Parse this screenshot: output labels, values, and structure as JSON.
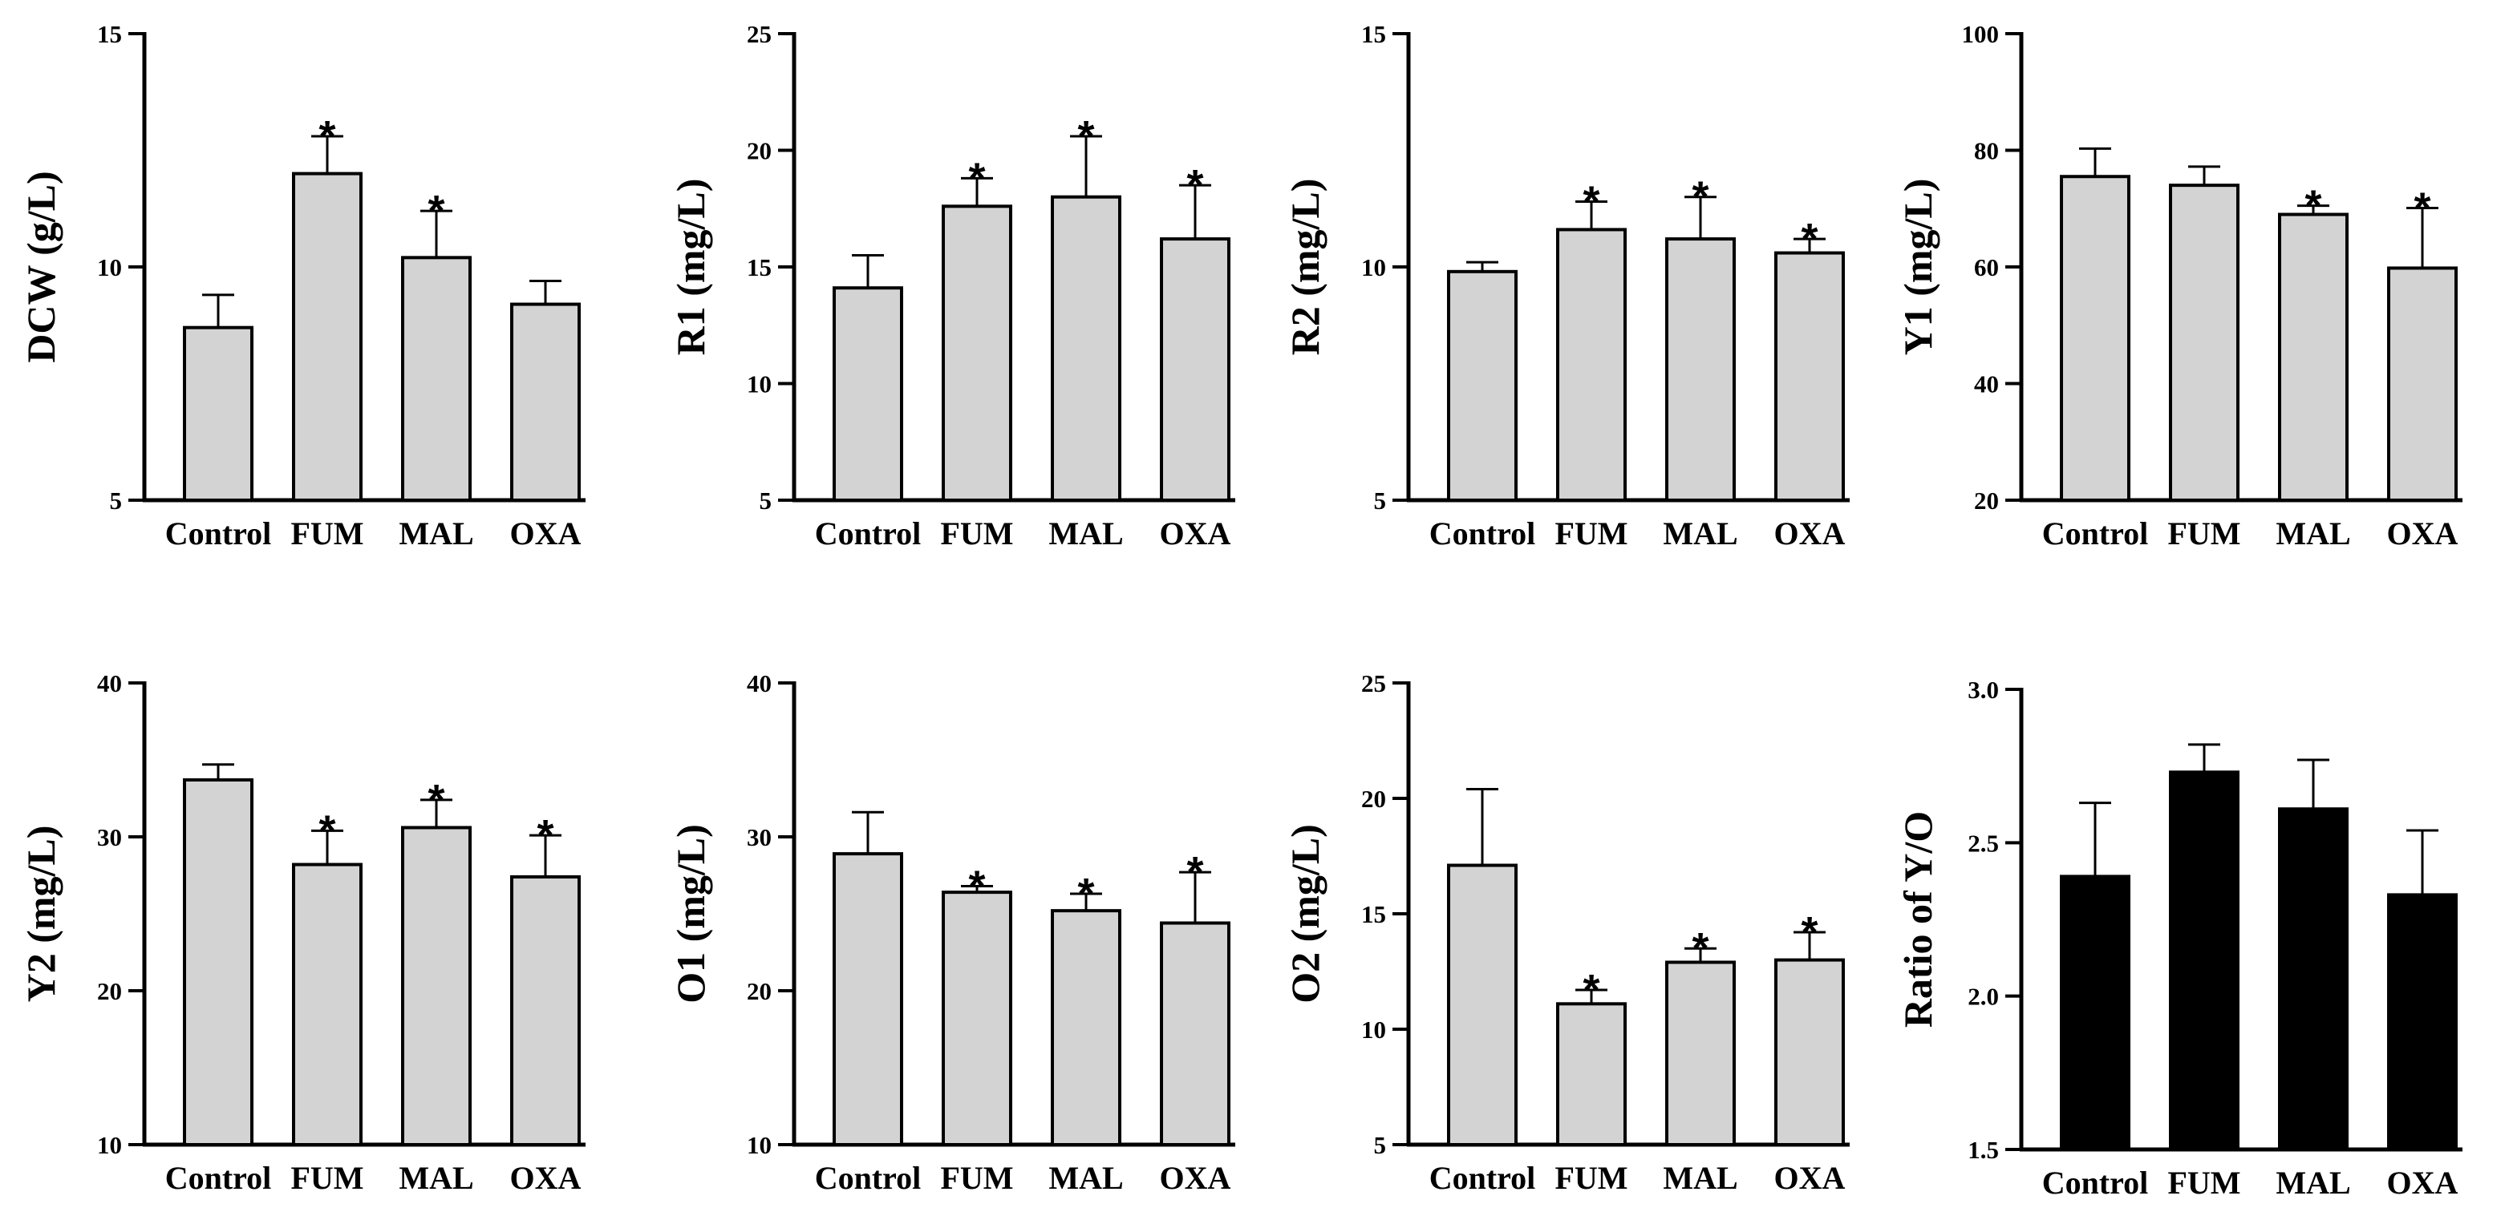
{
  "figure": {
    "background": "#ffffff",
    "bar_light": "#d3d3d3",
    "bar_dark": "#000000",
    "stroke": "#000000"
  },
  "chart_data": [
    {
      "id": "dcw",
      "type": "bar",
      "title": "",
      "xlabel": "",
      "ylabel": "DCW (g/L)",
      "categories": [
        "Control",
        "FUM",
        "MAL",
        "OXA"
      ],
      "values": [
        8.7,
        12.0,
        10.2,
        9.2
      ],
      "errors": [
        0.7,
        0.8,
        1.0,
        0.5
      ],
      "significant": [
        false,
        true,
        true,
        false
      ],
      "ylim": [
        5,
        15
      ],
      "yticks": [
        5,
        10,
        15
      ],
      "bar_style": "light"
    },
    {
      "id": "r1",
      "type": "bar",
      "title": "",
      "xlabel": "",
      "ylabel": "R1 (mg/L)",
      "categories": [
        "Control",
        "FUM",
        "MAL",
        "OXA"
      ],
      "values": [
        14.1,
        17.6,
        18.0,
        16.2
      ],
      "errors": [
        1.4,
        1.2,
        2.6,
        2.3
      ],
      "significant": [
        false,
        true,
        true,
        true
      ],
      "ylim": [
        5,
        25
      ],
      "yticks": [
        5,
        10,
        15,
        20,
        25
      ],
      "bar_style": "light"
    },
    {
      "id": "r2",
      "type": "bar",
      "title": "",
      "xlabel": "",
      "ylabel": "R2 (mg/L)",
      "categories": [
        "Control",
        "FUM",
        "MAL",
        "OXA"
      ],
      "values": [
        9.9,
        10.8,
        10.6,
        10.3
      ],
      "errors": [
        0.2,
        0.6,
        0.9,
        0.3
      ],
      "significant": [
        false,
        true,
        true,
        true
      ],
      "ylim": [
        5,
        15
      ],
      "yticks": [
        5,
        10,
        15
      ],
      "bar_style": "light"
    },
    {
      "id": "y1",
      "type": "bar",
      "title": "",
      "xlabel": "",
      "ylabel": "Y1 (mg/L)",
      "categories": [
        "Control",
        "FUM",
        "MAL",
        "OXA"
      ],
      "values": [
        75.5,
        74.0,
        69.0,
        59.8
      ],
      "errors": [
        4.8,
        3.2,
        1.5,
        10.3
      ],
      "significant": [
        false,
        false,
        true,
        true
      ],
      "ylim": [
        20,
        100
      ],
      "yticks": [
        20,
        40,
        60,
        80,
        100
      ],
      "bar_style": "light"
    },
    {
      "id": "y2",
      "type": "bar",
      "title": "",
      "xlabel": "",
      "ylabel": "Y2 (mg/L)",
      "categories": [
        "Control",
        "FUM",
        "MAL",
        "OXA"
      ],
      "values": [
        33.7,
        28.2,
        30.6,
        27.4
      ],
      "errors": [
        1.0,
        2.2,
        1.8,
        2.7
      ],
      "significant": [
        false,
        true,
        true,
        true
      ],
      "ylim": [
        10,
        40
      ],
      "yticks": [
        10,
        20,
        30,
        40
      ],
      "bar_style": "light"
    },
    {
      "id": "o1",
      "type": "bar",
      "title": "",
      "xlabel": "",
      "ylabel": "O1 (mg/L)",
      "categories": [
        "Control",
        "FUM",
        "MAL",
        "OXA"
      ],
      "values": [
        28.9,
        26.4,
        25.2,
        24.4
      ],
      "errors": [
        2.7,
        0.4,
        1.1,
        3.3
      ],
      "significant": [
        false,
        true,
        true,
        true
      ],
      "ylim": [
        10,
        40
      ],
      "yticks": [
        10,
        20,
        30,
        40
      ],
      "bar_style": "light"
    },
    {
      "id": "o2",
      "type": "bar",
      "title": "",
      "xlabel": "",
      "ylabel": "O2 (mg/L)",
      "categories": [
        "Control",
        "FUM",
        "MAL",
        "OXA"
      ],
      "values": [
        17.1,
        11.1,
        12.9,
        13.0
      ],
      "errors": [
        3.3,
        0.6,
        0.6,
        1.2
      ],
      "significant": [
        false,
        true,
        true,
        true
      ],
      "ylim": [
        5,
        25
      ],
      "yticks": [
        5,
        10,
        15,
        20,
        25
      ],
      "bar_style": "light"
    },
    {
      "id": "ratio",
      "type": "bar",
      "title": "",
      "xlabel": "",
      "ylabel": "Ratio of Y/O",
      "categories": [
        "Control",
        "FUM",
        "MAL",
        "OXA"
      ],
      "values": [
        2.39,
        2.73,
        2.61,
        2.33
      ],
      "errors": [
        0.24,
        0.09,
        0.16,
        0.21
      ],
      "significant": [
        false,
        false,
        false,
        false
      ],
      "ylim": [
        1.5,
        3.0
      ],
      "yticks": [
        "1.5",
        "2.0",
        "2.5",
        "3.0"
      ],
      "bar_style": "dark"
    }
  ]
}
